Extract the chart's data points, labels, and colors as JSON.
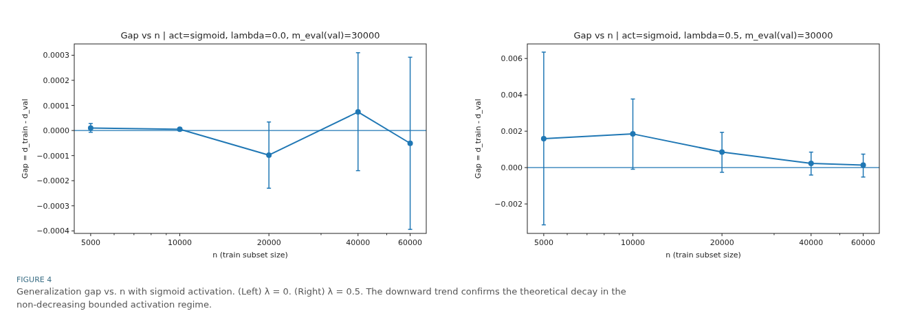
{
  "chart_data": [
    {
      "type": "line",
      "title": "Gap vs n | act=sigmoid, lambda=0.0, m_eval(val)=30000",
      "xlabel": "n (train subset size)",
      "ylabel": "Gap = d_train - d_val",
      "log": "x",
      "marker": "circle",
      "grid": false,
      "x": [
        5000,
        10000,
        20000,
        40000,
        60000
      ],
      "series": [
        {
          "color": "#1f77b4",
          "values": [
            1e-05,
            5e-06,
            -9.8e-05,
            7.4e-05,
            -5.1e-05
          ],
          "errors": [
            [
              -7e-06,
              2.8e-05
            ],
            null,
            [
              -0.00023,
              3.4e-05
            ],
            [
              -0.00016,
              0.00031
            ],
            [
              -0.000394,
              0.000292
            ]
          ]
        }
      ],
      "xlim": [
        4400,
        68000
      ],
      "xticks": [
        5000,
        {
          "value": 6000,
          "label": null
        },
        {
          "value": 7000,
          "label": null
        },
        {
          "value": 8000,
          "label": null
        },
        {
          "value": 9000,
          "label": null
        },
        10000,
        20000,
        {
          "value": 30000,
          "label": null
        },
        40000,
        {
          "value": 50000,
          "label": null
        },
        60000
      ],
      "ylim": [
        -0.00041,
        0.000345
      ],
      "yticks": [
        {
          "value": -0.0004,
          "label": "−0.0004"
        },
        {
          "value": -0.0003,
          "label": "−0.0003"
        },
        {
          "value": -0.0002,
          "label": "−0.0002"
        },
        {
          "value": -0.0001,
          "label": "−0.0001"
        },
        {
          "value": 0,
          "label": "0.0000"
        },
        0.0001,
        0.0002,
        0.0003
      ],
      "ref_lines": [
        {
          "axis": "y",
          "value": 0,
          "color": "#1f77b4"
        }
      ],
      "annotations": [
        "FIGURE 4",
        "Generalization gap vs. n with sigmoid activation. (Left) λ = 0. (Right) λ = 0.5. The downward trend confirms the theoretical decay in the non-decreasing bounded activation regime."
      ]
    },
    {
      "type": "line",
      "title": "Gap vs n | act=sigmoid, lambda=0.5, m_eval(val)=30000",
      "xlabel": "n (train subset size)",
      "ylabel": "Gap = d_train - d_val",
      "log": "x",
      "marker": "circle",
      "grid": false,
      "x": [
        5000,
        10000,
        20000,
        40000,
        60000
      ],
      "series": [
        {
          "color": "#1f77b4",
          "values": [
            0.00159,
            0.00185,
            0.00085,
            0.00023,
            0.00014
          ],
          "errors": [
            [
              -0.00315,
              0.00635
            ],
            [
              -9e-05,
              0.00377
            ],
            [
              -0.00026,
              0.00194
            ],
            [
              -0.00041,
              0.00085
            ],
            [
              -0.00052,
              0.00074
            ]
          ]
        }
      ],
      "xlim": [
        4400,
        68000
      ],
      "xticks": [
        5000,
        {
          "value": 6000,
          "label": null
        },
        {
          "value": 7000,
          "label": null
        },
        {
          "value": 8000,
          "label": null
        },
        {
          "value": 9000,
          "label": null
        },
        10000,
        20000,
        {
          "value": 30000,
          "label": null
        },
        40000,
        {
          "value": 50000,
          "label": null
        },
        60000
      ],
      "ylim": [
        -0.00362,
        0.0068
      ],
      "yticks": [
        {
          "value": -0.002,
          "label": "−0.002"
        },
        {
          "value": 0,
          "label": "0.000"
        },
        0.002,
        0.004,
        0.006
      ],
      "ref_lines": [
        {
          "axis": "y",
          "value": 0,
          "color": "#1f77b4"
        }
      ]
    }
  ]
}
